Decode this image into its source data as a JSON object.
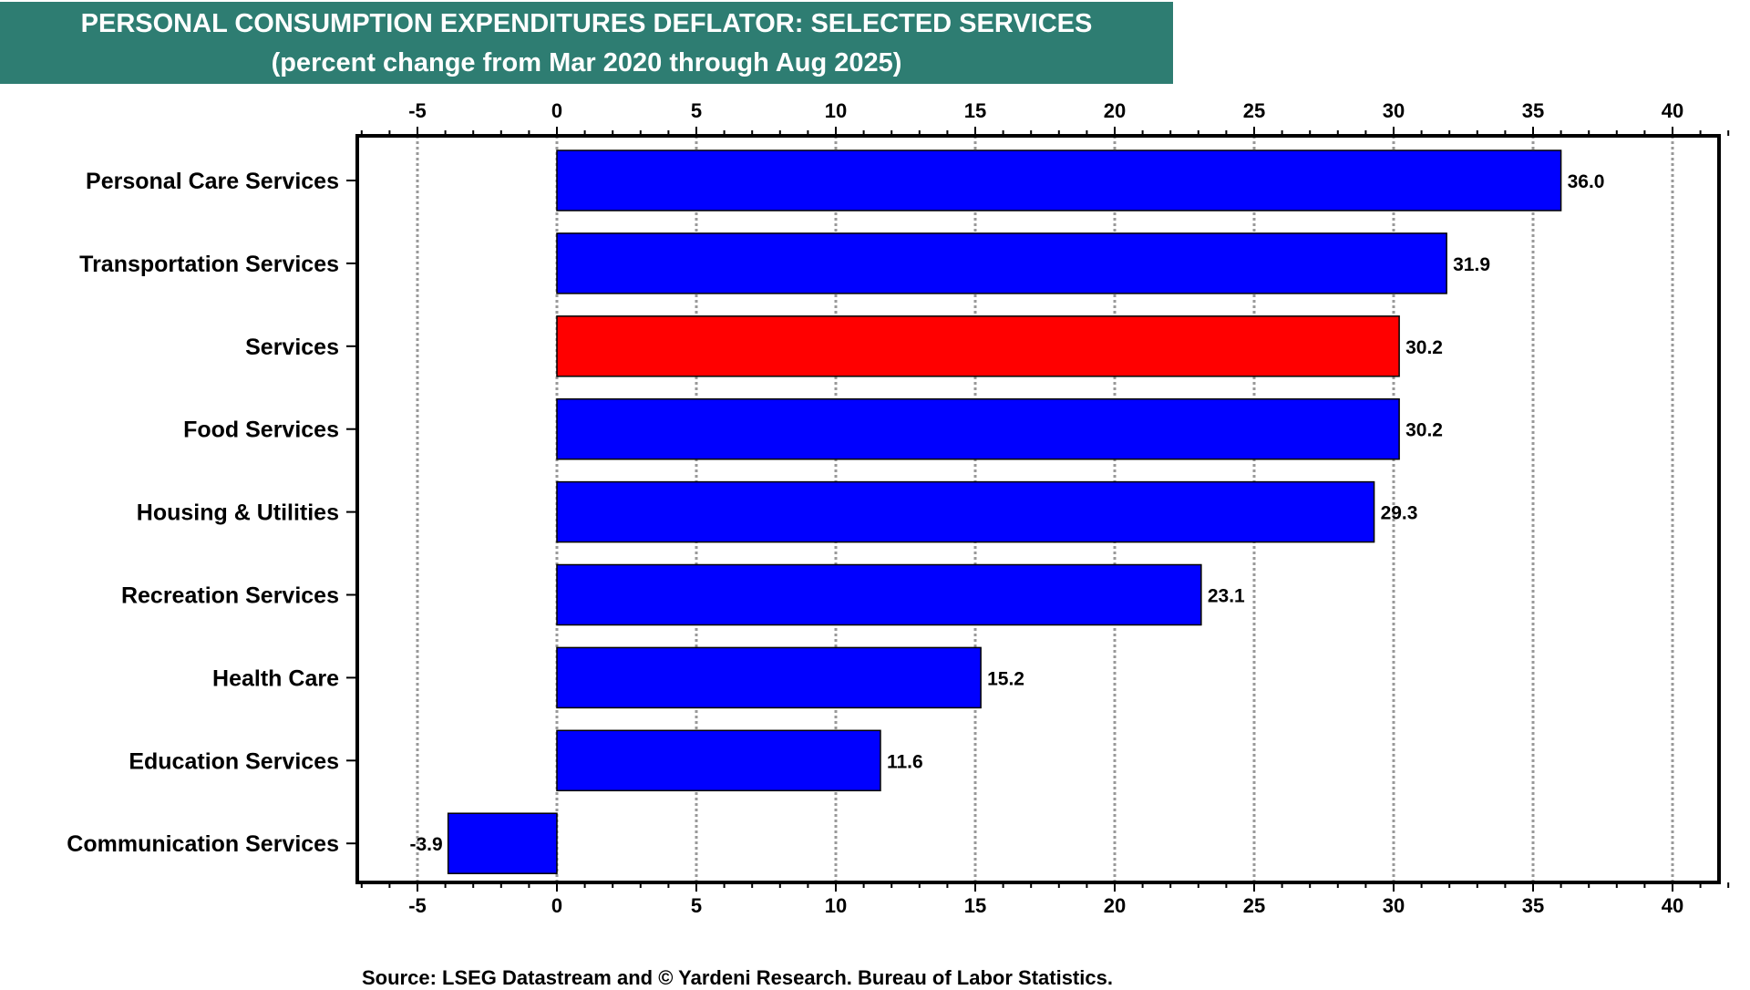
{
  "header": {
    "title": "PERSONAL CONSUMPTION EXPENDITURES DEFLATOR: SELECTED SERVICES",
    "subtitle": "(percent change from Mar 2020 through Aug 2025)"
  },
  "source": "Source: LSEG Datastream and © Yardeni Research. Bureau of Labor Statistics.",
  "chart_data": {
    "type": "bar",
    "orientation": "horizontal",
    "title": "PERSONAL CONSUMPTION EXPENDITURES DEFLATOR: SELECTED SERVICES",
    "subtitle": "(percent change from Mar 2020 through Aug 2025)",
    "xlabel": "",
    "ylabel": "",
    "xlim": [
      -7,
      42.5
    ],
    "xticks": [
      -5,
      0,
      5,
      10,
      15,
      20,
      25,
      30,
      35,
      40
    ],
    "grid": "vertical dotted at major ticks",
    "categories": [
      "Personal Care Services",
      "Transportation Services",
      "Services",
      "Food Services",
      "Housing & Utilities",
      "Recreation Services",
      "Health Care",
      "Education Services",
      "Communication Services"
    ],
    "values": [
      36.0,
      31.9,
      30.2,
      30.2,
      29.3,
      23.1,
      15.2,
      11.6,
      -3.9
    ],
    "value_labels": [
      "36.0",
      "31.9",
      "30.2",
      "30.2",
      "29.3",
      "23.1",
      "15.2",
      "11.6",
      "-3.9"
    ],
    "colors": [
      "#0000ff",
      "#0000ff",
      "#ff0000",
      "#0000ff",
      "#0000ff",
      "#0000ff",
      "#0000ff",
      "#0000ff",
      "#0000ff"
    ],
    "highlight": "Services"
  }
}
